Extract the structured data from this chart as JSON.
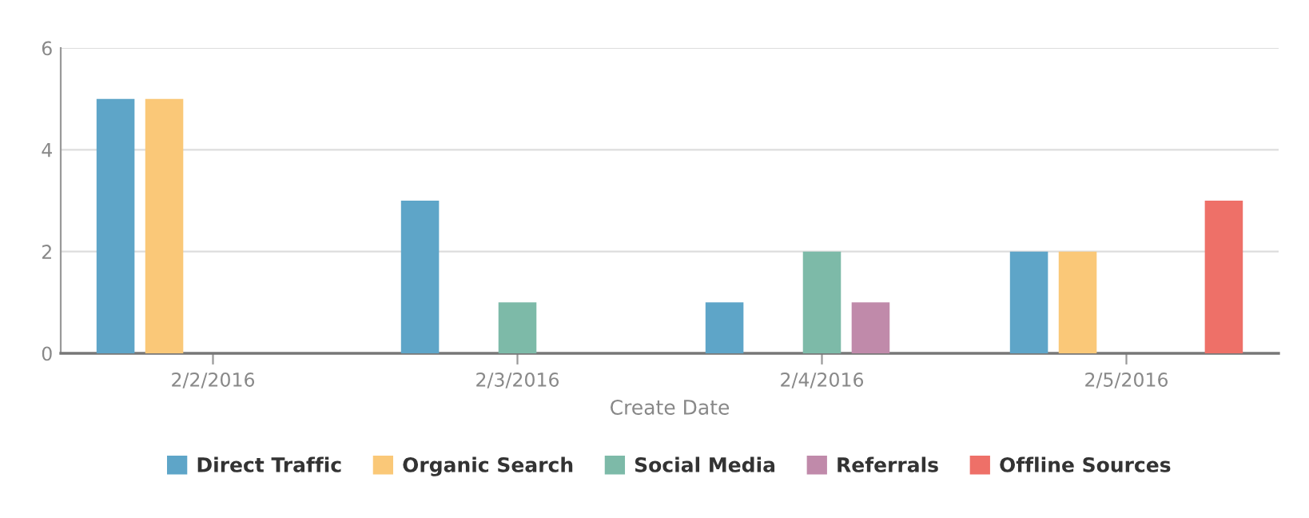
{
  "chart_data": {
    "type": "bar",
    "xlabel": "Create Date",
    "categories": [
      "2/2/2016",
      "2/3/2016",
      "2/4/2016",
      "2/5/2016"
    ],
    "series": [
      {
        "name": "Direct Traffic",
        "color": "#5ea5c8",
        "values": [
          5,
          3,
          1,
          2
        ]
      },
      {
        "name": "Organic Search",
        "color": "#fac878",
        "values": [
          5,
          0,
          0,
          2
        ]
      },
      {
        "name": "Social Media",
        "color": "#7dbaa8",
        "values": [
          0,
          1,
          2,
          0
        ]
      },
      {
        "name": "Referrals",
        "color": "#c08aaa",
        "values": [
          0,
          0,
          1,
          0
        ]
      },
      {
        "name": "Offline Sources",
        "color": "#ee7068",
        "values": [
          0,
          0,
          0,
          3
        ]
      }
    ],
    "ylim": [
      0,
      6
    ],
    "yticks": [
      0,
      2,
      4,
      6
    ],
    "grid": "y",
    "legend": "bottom"
  }
}
